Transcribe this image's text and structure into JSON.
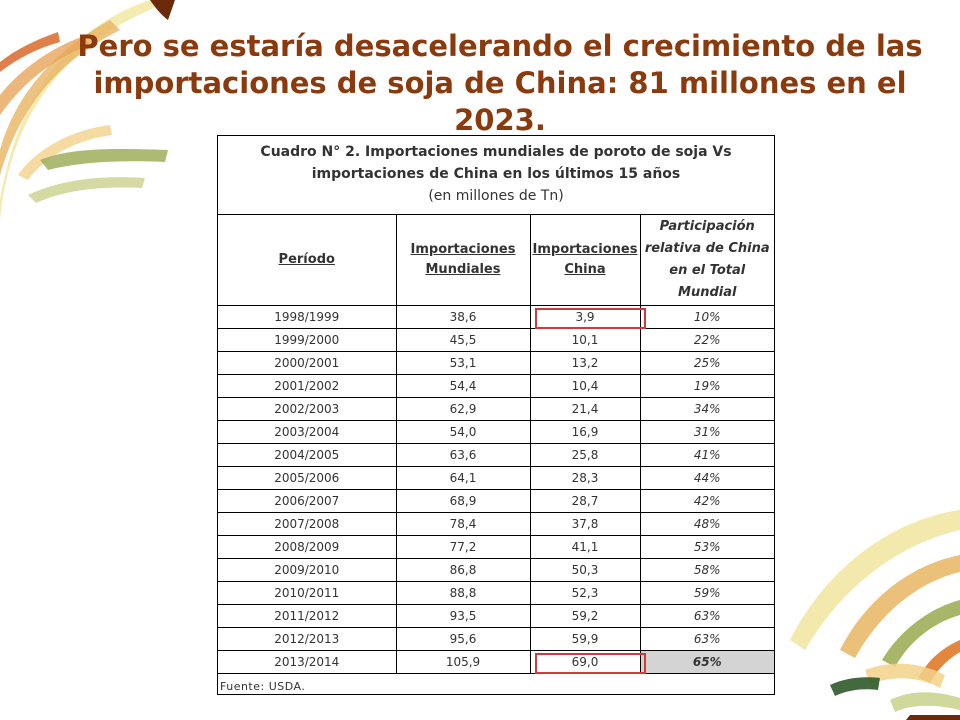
{
  "slide": {
    "title_line1": "Pero se estaría desacelerando el crecimiento de las",
    "title_line2": "importaciones de soja de China: 81 millones en el",
    "title_line3": "2023."
  },
  "table": {
    "caption_line1": "Cuadro N° 2. Importaciones mundiales de poroto de soja Vs",
    "caption_line2": "importaciones de China en los últimos 15 años",
    "caption_unit": "(en millones de Tn)",
    "headers": {
      "period": "Período",
      "world_l1": "Importaciones",
      "world_l2": "Mundiales",
      "china_l1": "Importaciones",
      "china_l2": "China",
      "share_l1": "Participación",
      "share_l2": "relativa de China",
      "share_l3": "en el Total",
      "share_l4": "Mundial"
    },
    "rows": [
      {
        "period": "1998/1999",
        "world": "38,6",
        "china": "3,9",
        "share": "10%"
      },
      {
        "period": "1999/2000",
        "world": "45,5",
        "china": "10,1",
        "share": "22%"
      },
      {
        "period": "2000/2001",
        "world": "53,1",
        "china": "13,2",
        "share": "25%"
      },
      {
        "period": "2001/2002",
        "world": "54,4",
        "china": "10,4",
        "share": "19%"
      },
      {
        "period": "2002/2003",
        "world": "62,9",
        "china": "21,4",
        "share": "34%"
      },
      {
        "period": "2003/2004",
        "world": "54,0",
        "china": "16,9",
        "share": "31%"
      },
      {
        "period": "2004/2005",
        "world": "63,6",
        "china": "25,8",
        "share": "41%"
      },
      {
        "period": "2005/2006",
        "world": "64,1",
        "china": "28,3",
        "share": "44%"
      },
      {
        "period": "2006/2007",
        "world": "68,9",
        "china": "28,7",
        "share": "42%"
      },
      {
        "period": "2007/2008",
        "world": "78,4",
        "china": "37,8",
        "share": "48%"
      },
      {
        "period": "2008/2009",
        "world": "77,2",
        "china": "41,1",
        "share": "53%"
      },
      {
        "period": "2009/2010",
        "world": "86,8",
        "china": "50,3",
        "share": "58%"
      },
      {
        "period": "2010/2011",
        "world": "88,8",
        "china": "52,3",
        "share": "59%"
      },
      {
        "period": "2011/2012",
        "world": "93,5",
        "china": "59,2",
        "share": "63%"
      },
      {
        "period": "2012/2013",
        "world": "95,6",
        "china": "59,9",
        "share": "63%"
      },
      {
        "period": "2013/2014",
        "world": "105,9",
        "china": "69,0",
        "share": "65%"
      }
    ],
    "source": "Fuente: USDA."
  },
  "colors": {
    "title": "#8a3a0c",
    "highlight_box": "#d03a3a",
    "total_cell": "#d4d4d4"
  }
}
